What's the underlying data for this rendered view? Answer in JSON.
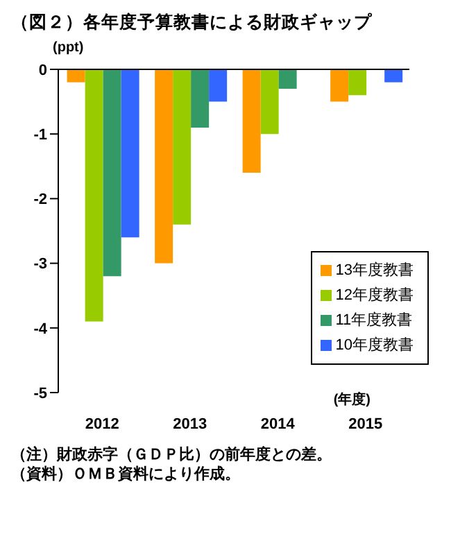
{
  "chart_data": {
    "type": "bar",
    "title": "（図２）各年度予算教書による財政ギャップ",
    "ylabel": "(ppt)",
    "xlabel": "(年度)",
    "categories": [
      "2012",
      "2013",
      "2014",
      "2015"
    ],
    "series": [
      {
        "name": "13年度教書",
        "color": "#ff9900",
        "values": [
          -0.2,
          -3.0,
          -1.6,
          -0.5
        ]
      },
      {
        "name": "12年度教書",
        "color": "#99cc00",
        "values": [
          -3.9,
          -2.4,
          -1.0,
          -0.4
        ]
      },
      {
        "name": "11年度教書",
        "color": "#339966",
        "values": [
          -3.2,
          -0.9,
          -0.3,
          null
        ]
      },
      {
        "name": "10年度教書",
        "color": "#3366ff",
        "values": [
          -2.6,
          -0.5,
          null,
          -0.2
        ]
      }
    ],
    "ylim": [
      -5,
      0
    ],
    "yticks": [
      -5,
      -4,
      -3,
      -2,
      -1,
      0
    ],
    "grid": false,
    "legend": "right",
    "annotations": [
      "（注）財政赤字（ＧＤＰ比）の前年度との差。",
      "（資料）ＯＭＢ資料により作成。"
    ]
  }
}
